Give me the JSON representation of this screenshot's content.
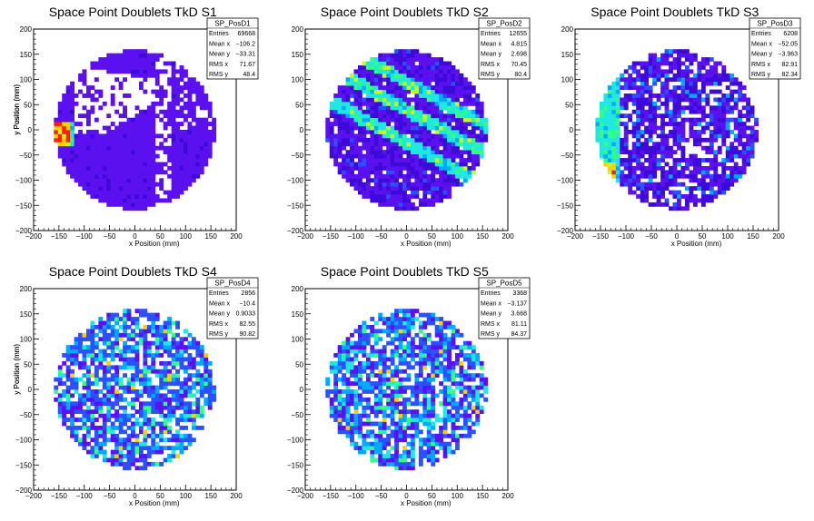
{
  "chart_data": [
    {
      "type": "heatmap",
      "title": "Space Point Doublets TkD S1",
      "xlabel": "x Position (mm)",
      "ylabel": "y Position (mm)",
      "xlim": [
        -200,
        200
      ],
      "ylim": [
        -200,
        200
      ],
      "x_ticks": [
        "−200",
        "−150",
        "−100",
        "−50",
        "0",
        "50",
        "100",
        "150",
        "200"
      ],
      "y_ticks": [
        "−200",
        "−150",
        "−100",
        "−50",
        "0",
        "50",
        "100",
        "150",
        "200"
      ],
      "stats": {
        "name": "SP_PosD1",
        "rows": [
          {
            "label": "Entries",
            "value": "69668"
          },
          {
            "label": "Mean x",
            "value": "−106.2"
          },
          {
            "label": "Mean y",
            "value": "−33.31"
          },
          {
            "label": "RMS x",
            "value": "71.67"
          },
          {
            "label": "RMS y",
            "value": "48.4"
          }
        ]
      },
      "pattern": "S1"
    },
    {
      "type": "heatmap",
      "title": "Space Point Doublets TkD S2",
      "xlabel": "x Position (mm)",
      "ylabel": "y Position (mm)",
      "xlim": [
        -200,
        200
      ],
      "ylim": [
        -200,
        200
      ],
      "x_ticks": [
        "−200",
        "−150",
        "−100",
        "−50",
        "0",
        "50",
        "100",
        "150",
        "200"
      ],
      "y_ticks": [
        "−200",
        "−150",
        "−100",
        "−50",
        "0",
        "50",
        "100",
        "150",
        "200"
      ],
      "stats": {
        "name": "SP_PosD2",
        "rows": [
          {
            "label": "Entries",
            "value": "12655"
          },
          {
            "label": "Mean x",
            "value": "4.815"
          },
          {
            "label": "Mean y",
            "value": "2.698"
          },
          {
            "label": "RMS x",
            "value": "70.45"
          },
          {
            "label": "RMS y",
            "value": "80.4"
          }
        ]
      },
      "pattern": "S2"
    },
    {
      "type": "heatmap",
      "title": "Space Point Doublets TkD S3",
      "xlabel": "x Position (mm)",
      "ylabel": "y Position (mm)",
      "xlim": [
        -200,
        200
      ],
      "ylim": [
        -200,
        200
      ],
      "x_ticks": [
        "−200",
        "−150",
        "−100",
        "−50",
        "0",
        "50",
        "100",
        "150",
        "200"
      ],
      "y_ticks": [
        "−200",
        "−150",
        "−100",
        "−50",
        "0",
        "50",
        "100",
        "150",
        "200"
      ],
      "stats": {
        "name": "SP_PosD3",
        "rows": [
          {
            "label": "Entries",
            "value": "6208"
          },
          {
            "label": "Mean x",
            "value": "−52.05"
          },
          {
            "label": "Mean y",
            "value": "−3.963"
          },
          {
            "label": "RMS x",
            "value": "82.91"
          },
          {
            "label": "RMS y",
            "value": "82.34"
          }
        ]
      },
      "pattern": "S3"
    },
    {
      "type": "heatmap",
      "title": "Space Point Doublets TkD S4",
      "xlabel": "x Position (mm)",
      "ylabel": "y Position (mm)",
      "xlim": [
        -200,
        200
      ],
      "ylim": [
        -200,
        200
      ],
      "x_ticks": [
        "−200",
        "−150",
        "−100",
        "−50",
        "0",
        "50",
        "100",
        "150",
        "200"
      ],
      "y_ticks": [
        "−200",
        "−150",
        "−100",
        "−50",
        "0",
        "50",
        "100",
        "150",
        "200"
      ],
      "stats": {
        "name": "SP_PosD4",
        "rows": [
          {
            "label": "Entries",
            "value": "2856"
          },
          {
            "label": "Mean x",
            "value": "−10.4"
          },
          {
            "label": "Mean y",
            "value": "0.9033"
          },
          {
            "label": "RMS x",
            "value": "82.55"
          },
          {
            "label": "RMS y",
            "value": "90.82"
          }
        ]
      },
      "pattern": "S4"
    },
    {
      "type": "heatmap",
      "title": "Space Point Doublets TkD S5",
      "xlabel": "x Position (mm)",
      "ylabel": "y Position (mm)",
      "xlim": [
        -200,
        200
      ],
      "ylim": [
        -200,
        200
      ],
      "x_ticks": [
        "−200",
        "−150",
        "−100",
        "−50",
        "0",
        "50",
        "100",
        "150",
        "200"
      ],
      "y_ticks": [
        "−200",
        "−150",
        "−100",
        "−50",
        "0",
        "50",
        "100",
        "150",
        "200"
      ],
      "stats": {
        "name": "SP_PosD5",
        "rows": [
          {
            "label": "Entries",
            "value": "3368"
          },
          {
            "label": "Mean x",
            "value": "−3.137"
          },
          {
            "label": "Mean y",
            "value": "3.668"
          },
          {
            "label": "RMS x",
            "value": "81.11"
          },
          {
            "label": "RMS y",
            "value": "84.37"
          }
        ]
      },
      "pattern": "S5"
    }
  ],
  "colors": {
    "palette": [
      "#3d0ad8",
      "#5b10f0",
      "#2a50ff",
      "#00aaff",
      "#20e8e0",
      "#30ff80",
      "#c0ff20",
      "#ffd000",
      "#ff2000"
    ],
    "frame": "#000000",
    "background": "#ffffff"
  }
}
